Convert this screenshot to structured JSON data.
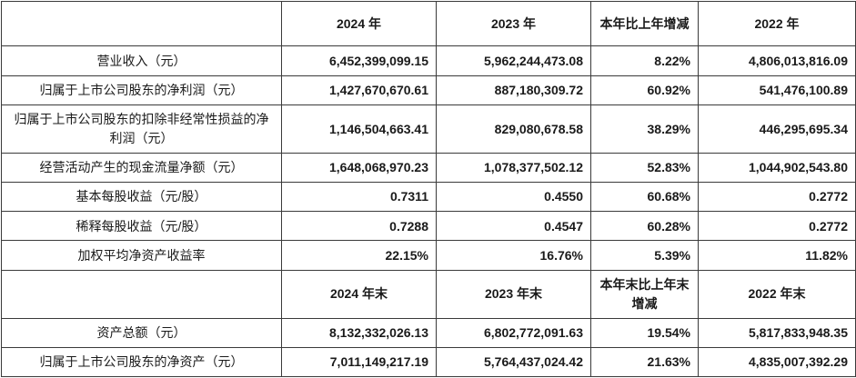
{
  "table": {
    "rows": [
      {
        "type": "header",
        "cells": [
          "",
          "2024 年",
          "2023 年",
          "本年比上年增减",
          "2022 年"
        ]
      },
      {
        "type": "data",
        "label": "营业收入（元）",
        "values": [
          "6,452,399,099.15",
          "5,962,244,473.08",
          "8.22%",
          "4,806,013,816.09"
        ]
      },
      {
        "type": "data",
        "label": "归属于上市公司股东的净利润（元）",
        "values": [
          "1,427,670,670.61",
          "887,180,309.72",
          "60.92%",
          "541,476,100.89"
        ]
      },
      {
        "type": "data",
        "tall": true,
        "label": "归属于上市公司股东的扣除非经常性损益的净利润（元）",
        "values": [
          "1,146,504,663.41",
          "829,080,678.58",
          "38.29%",
          "446,295,695.34"
        ]
      },
      {
        "type": "data",
        "label": "经营活动产生的现金流量净额（元）",
        "values": [
          "1,648,068,970.23",
          "1,078,377,502.12",
          "52.83%",
          "1,044,902,543.80"
        ]
      },
      {
        "type": "data",
        "label": "基本每股收益（元/股）",
        "values": [
          "0.7311",
          "0.4550",
          "60.68%",
          "0.2772"
        ]
      },
      {
        "type": "data",
        "label": "稀释每股收益（元/股）",
        "values": [
          "0.7288",
          "0.4547",
          "60.28%",
          "0.2772"
        ]
      },
      {
        "type": "data",
        "label": "加权平均净资产收益率",
        "values": [
          "22.15%",
          "16.76%",
          "5.39%",
          "11.82%"
        ]
      },
      {
        "type": "header",
        "cells": [
          "",
          "2024 年末",
          "2023 年末",
          "本年末比上年末增减",
          "2022 年末"
        ]
      },
      {
        "type": "data",
        "label": "资产总额（元）",
        "values": [
          "8,132,332,026.13",
          "6,802,772,091.63",
          "19.54%",
          "5,817,833,948.35"
        ]
      },
      {
        "type": "data",
        "label": "归属于上市公司股东的净资产（元）",
        "values": [
          "7,011,149,217.19",
          "5,764,437,024.42",
          "21.63%",
          "4,835,007,392.29"
        ]
      }
    ]
  }
}
